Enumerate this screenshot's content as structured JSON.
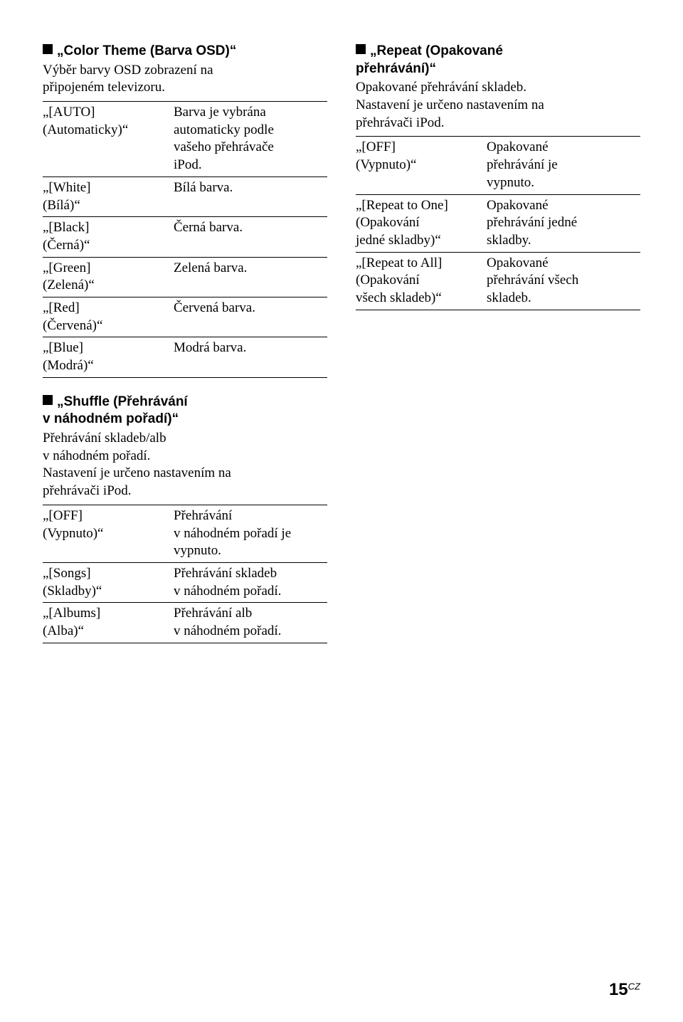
{
  "left": {
    "section1": {
      "title": "„Color Theme (Barva OSD)“",
      "desc_l1": "Výběr barvy OSD zobrazení na",
      "desc_l2": "připojeném televizoru.",
      "rows": [
        {
          "k1": "„[AUTO]",
          "k2": "(Automaticky)“",
          "v1": "Barva je vybrána",
          "v2": "automaticky podle",
          "v3": "vašeho přehrávače",
          "v4": "iPod."
        },
        {
          "k1": "„[White]",
          "k2": "(Bílá)“",
          "v1": "Bílá barva."
        },
        {
          "k1": "„[Black]",
          "k2": "(Černá)“",
          "v1": "Černá barva."
        },
        {
          "k1": "„[Green]",
          "k2": "(Zelená)“",
          "v1": "Zelená barva."
        },
        {
          "k1": "„[Red]",
          "k2": "(Červená)“",
          "v1": "Červená barva."
        },
        {
          "k1": "„[Blue]",
          "k2": "(Modrá)“",
          "v1": "Modrá barva."
        }
      ]
    },
    "section2": {
      "title_l1": "„Shuffle (Přehrávání",
      "title_l2": "v náhodném pořadí)“",
      "desc_l1": "Přehrávání skladeb/alb",
      "desc_l2": "v náhodném pořadí.",
      "desc_l3": "Nastavení je určeno nastavením na",
      "desc_l4": "přehrávači iPod.",
      "rows": [
        {
          "k1": "„[OFF]",
          "k2": "(Vypnuto)“",
          "v1": "Přehrávání",
          "v2": "v náhodném pořadí je",
          "v3": "vypnuto."
        },
        {
          "k1": "„[Songs]",
          "k2": "(Skladby)“",
          "v1": "Přehrávání skladeb",
          "v2": "v náhodném pořadí."
        },
        {
          "k1": "„[Albums]",
          "k2": "(Alba)“",
          "v1": "Přehrávání alb",
          "v2": "v náhodném pořadí."
        }
      ]
    }
  },
  "right": {
    "section1": {
      "title_l1": "„Repeat (Opakované",
      "title_l2": "přehrávání)“",
      "desc_l1": "Opakované přehrávání skladeb.",
      "desc_l2": "Nastavení je určeno nastavením na",
      "desc_l3": "přehrávači iPod.",
      "rows": [
        {
          "k1": "„[OFF]",
          "k2": "(Vypnuto)“",
          "v1": "Opakované",
          "v2": "přehrávání je",
          "v3": "vypnuto."
        },
        {
          "k1": "„[Repeat to One]",
          "k2": "(Opakování",
          "k3": "jedné skladby)“",
          "v1": "Opakované",
          "v2": "přehrávání jedné",
          "v3": "skladby."
        },
        {
          "k1": "„[Repeat to All]",
          "k2": "(Opakování",
          "k3": "všech skladeb)“",
          "v1": "Opakované",
          "v2": "přehrávání všech",
          "v3": "skladeb."
        }
      ]
    }
  },
  "page": {
    "num": "15",
    "suffix": "CZ"
  }
}
